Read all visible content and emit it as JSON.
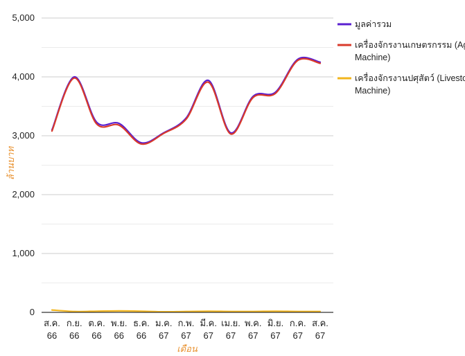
{
  "chart_data": {
    "type": "line",
    "xlabel": "เดือน",
    "ylabel": "ล้านบาท",
    "ylim": [
      0,
      5000
    ],
    "yticks": [
      "0",
      "1,000",
      "2,000",
      "3,000",
      "4,000",
      "5,000"
    ],
    "categories": [
      [
        "ส.ค.",
        "66"
      ],
      [
        "ก.ย.",
        "66"
      ],
      [
        "ต.ค.",
        "66"
      ],
      [
        "พ.ย.",
        "66"
      ],
      [
        "ธ.ค.",
        "66"
      ],
      [
        "ม.ค.",
        "67"
      ],
      [
        "ก.พ.",
        "67"
      ],
      [
        "มี.ค.",
        "67"
      ],
      [
        "เม.ย.",
        "67"
      ],
      [
        "พ.ค.",
        "67"
      ],
      [
        "มิ.ย.",
        "67"
      ],
      [
        "ก.ค.",
        "67"
      ],
      [
        "ส.ค.",
        "67"
      ]
    ],
    "grid": true,
    "legend_position": "right",
    "series": [
      {
        "name": "มูลค่ารวม",
        "legend_lines": [
          "มูลค่ารวม"
        ],
        "color": "#5a1fd0",
        "values": [
          3100,
          4000,
          3230,
          3210,
          2880,
          3050,
          3300,
          3940,
          3050,
          3670,
          3740,
          4300,
          4250
        ]
      },
      {
        "name": "เครื่องจักรงานเกษตรกรรม (Agricultural Machine)",
        "legend_lines": [
          "เครื่องจักรงานเกษตรกรรม (Agricultural",
          "Machine)"
        ],
        "color": "#d93a2b",
        "values": [
          3080,
          3980,
          3200,
          3180,
          2860,
          3040,
          3280,
          3910,
          3030,
          3650,
          3720,
          4280,
          4230
        ]
      },
      {
        "name": "เครื่องจักรงานปศุสัตว์ (Livestock Machine)",
        "legend_lines": [
          "เครื่องจักรงานปศุสัตว์ (Livestock",
          "Machine)"
        ],
        "color": "#f2b51c",
        "values": [
          40,
          15,
          20,
          25,
          20,
          10,
          15,
          20,
          15,
          15,
          20,
          15,
          15
        ]
      }
    ]
  }
}
